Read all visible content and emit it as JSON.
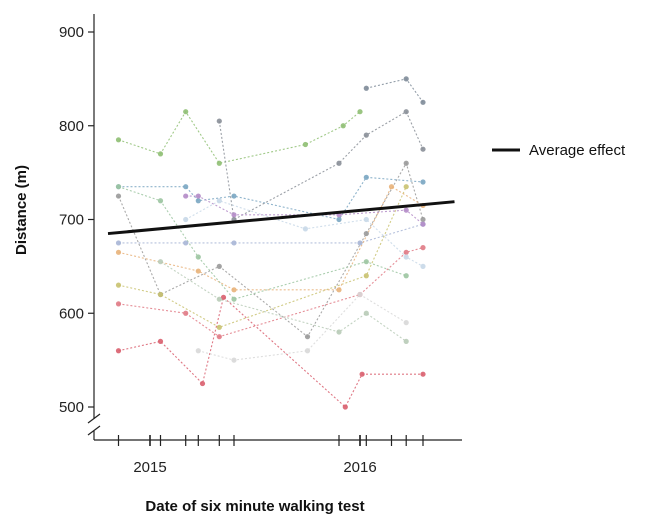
{
  "chart_data": {
    "type": "line",
    "xlabel": "Date of six minute walking test",
    "ylabel": "Distance (m)",
    "ylim": [
      490,
      930
    ],
    "y_ticks": [
      500,
      600,
      700,
      800,
      900
    ],
    "xlim": [
      2014.75,
      2016.45
    ],
    "x_ticks_labeled": [
      {
        "value": 2015.0,
        "label": "2015"
      },
      {
        "value": 2016.0,
        "label": "2016"
      }
    ],
    "x_minor_ticks": [
      2014.85,
      2015.05,
      2015.17,
      2015.23,
      2015.33,
      2015.4,
      2015.9,
      2016.0,
      2016.03,
      2016.15,
      2016.22,
      2016.3
    ],
    "y_axis_break": true,
    "grid": false,
    "legend_position": "right",
    "colors": {
      "average": "#111111",
      "axis": "#222222"
    },
    "series": [
      {
        "name": "Average effect",
        "color": "#111111",
        "style": "solid",
        "x": [
          2014.8,
          2016.45
        ],
        "y": [
          685,
          719
        ]
      },
      {
        "color": "#d95f6e",
        "x": [
          2014.85,
          2015.05,
          2015.25,
          2015.35,
          2015.93,
          2016.01,
          2016.3
        ],
        "y": [
          560,
          570,
          525,
          617,
          500,
          535,
          535
        ]
      },
      {
        "color": "#e07a85",
        "x": [
          2014.85,
          2015.17,
          2015.33,
          2016.0,
          2016.22,
          2016.3
        ],
        "y": [
          610,
          600,
          575,
          620,
          665,
          670
        ]
      },
      {
        "color": "#8fbf73",
        "x": [
          2014.85,
          2015.05,
          2015.17,
          2015.33,
          2015.74,
          2015.92,
          2016.0
        ],
        "y": [
          785,
          770,
          815,
          760,
          780,
          800,
          815
        ]
      },
      {
        "color": "#7aa6c2",
        "x": [
          2014.85,
          2015.17,
          2015.23,
          2015.4,
          2015.9,
          2016.03,
          2016.3
        ],
        "y": [
          735,
          735,
          720,
          725,
          700,
          745,
          740
        ]
      },
      {
        "color": "#9a9a9a",
        "x": [
          2014.85,
          2015.05,
          2015.33,
          2015.75,
          2016.03,
          2016.22,
          2016.3
        ],
        "y": [
          725,
          620,
          650,
          575,
          685,
          760,
          700
        ]
      },
      {
        "color": "#8a8f98",
        "x": [
          2015.33,
          2015.4,
          2015.9,
          2016.03,
          2016.22,
          2016.3
        ],
        "y": [
          805,
          700,
          760,
          790,
          815,
          775
        ]
      },
      {
        "color": "#c9c270",
        "x": [
          2014.85,
          2015.05,
          2015.33,
          2016.03,
          2016.22
        ],
        "y": [
          630,
          620,
          585,
          640,
          735
        ]
      },
      {
        "color": "#a9b6d6",
        "x": [
          2014.85,
          2015.17,
          2015.4,
          2016.0,
          2016.3
        ],
        "y": [
          675,
          675,
          675,
          675,
          695
        ]
      },
      {
        "color": "#e8b27a",
        "x": [
          2014.85,
          2015.23,
          2015.4,
          2015.9,
          2016.15,
          2016.3
        ],
        "y": [
          665,
          645,
          625,
          625,
          735,
          715
        ]
      },
      {
        "color": "#b48cc8",
        "x": [
          2015.17,
          2015.23,
          2015.4,
          2015.9,
          2016.22,
          2016.3
        ],
        "y": [
          725,
          725,
          705,
          705,
          710,
          695
        ]
      },
      {
        "color": "#b8cbb7",
        "x": [
          2015.05,
          2015.33,
          2015.9,
          2016.03,
          2016.22
        ],
        "y": [
          655,
          615,
          580,
          600,
          570
        ]
      },
      {
        "color": "#c8d8e8",
        "x": [
          2015.17,
          2015.33,
          2015.74,
          2016.03,
          2016.22,
          2016.3
        ],
        "y": [
          700,
          720,
          690,
          700,
          660,
          650
        ]
      },
      {
        "color": "#d8d8d8",
        "x": [
          2015.23,
          2015.4,
          2015.75,
          2016.0,
          2016.22
        ],
        "y": [
          560,
          550,
          560,
          620,
          590
        ]
      },
      {
        "color": "#9cc5a1",
        "x": [
          2014.85,
          2015.05,
          2015.23,
          2015.4,
          2016.03,
          2016.22
        ],
        "y": [
          735,
          720,
          660,
          615,
          655,
          640
        ]
      },
      {
        "color": "#7f8c99",
        "x": [
          2016.03,
          2016.22,
          2016.3
        ],
        "y": [
          840,
          850,
          825
        ]
      }
    ]
  }
}
